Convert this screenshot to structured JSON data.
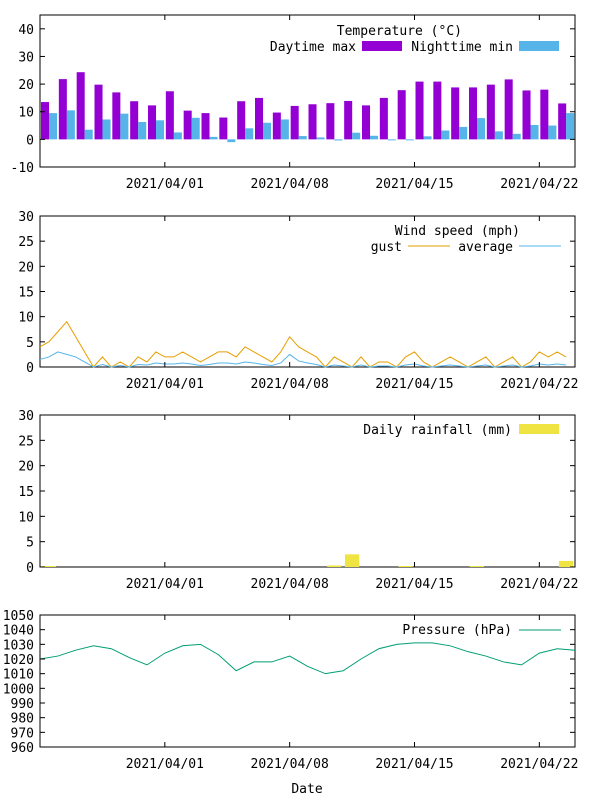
{
  "xaxis": {
    "label": "Date",
    "ticks": [
      {
        "day": 7,
        "label": "2021/04/01"
      },
      {
        "day": 14,
        "label": "2021/04/08"
      },
      {
        "day": 21,
        "label": "2021/04/15"
      },
      {
        "day": 28,
        "label": "2021/04/22"
      }
    ]
  },
  "chart_data": [
    {
      "type": "bar",
      "title": "Temperature (°C)",
      "x": [
        "2021/03/26",
        "2021/03/27",
        "2021/03/28",
        "2021/03/29",
        "2021/03/30",
        "2021/03/31",
        "2021/04/01",
        "2021/04/02",
        "2021/04/03",
        "2021/04/04",
        "2021/04/05",
        "2021/04/06",
        "2021/04/07",
        "2021/04/08",
        "2021/04/09",
        "2021/04/10",
        "2021/04/11",
        "2021/04/12",
        "2021/04/13",
        "2021/04/14",
        "2021/04/15",
        "2021/04/16",
        "2021/04/17",
        "2021/04/18",
        "2021/04/19",
        "2021/04/20",
        "2021/04/21",
        "2021/04/22",
        "2021/04/23",
        "2021/04/24"
      ],
      "series": [
        {
          "name": "Daytime max",
          "color": "#9400d3",
          "values": [
            13.5,
            21.8,
            24.3,
            19.8,
            17.0,
            13.8,
            12.3,
            17.4,
            10.4,
            9.5,
            7.9,
            13.8,
            15.0,
            9.7,
            12.1,
            12.7,
            13.1,
            13.9,
            12.3,
            15.0,
            17.8,
            20.9,
            20.9,
            18.8,
            18.8,
            19.8,
            21.7,
            17.7,
            18.0,
            13.0
          ]
        },
        {
          "name": "Nighttime min",
          "color": "#56b4e9",
          "values": [
            9.5,
            10.5,
            3.5,
            7.2,
            9.3,
            6.3,
            6.9,
            2.5,
            7.8,
            0.9,
            -1.0,
            4.0,
            6.0,
            7.2,
            1.2,
            0.7,
            -0.4,
            2.4,
            1.3,
            0.0,
            0.0,
            1.1,
            3.2,
            4.5,
            7.7,
            2.9,
            2.0,
            5.2,
            5.0,
            9.5
          ]
        }
      ],
      "ylim": [
        -10,
        45
      ],
      "yticks": [
        -10,
        0,
        10,
        20,
        30,
        40
      ],
      "legend": "top-right"
    },
    {
      "type": "line",
      "title": "Wind speed (mph)",
      "series": [
        {
          "name": "gust",
          "color": "#e69f00",
          "x": [
            0,
            0.5,
            1,
            1.5,
            2,
            2.5,
            3,
            3.5,
            4,
            4.5,
            5,
            5.5,
            6,
            6.5,
            7,
            7.5,
            8,
            8.5,
            9,
            9.5,
            10,
            10.5,
            11,
            11.5,
            12,
            12.5,
            13,
            13.5,
            14,
            14.5,
            15,
            15.5,
            16,
            16.5,
            17,
            17.5,
            18,
            18.5,
            19,
            19.5,
            20,
            20.5,
            21,
            21.5,
            22,
            22.5,
            23,
            23.5,
            24,
            24.5,
            25,
            25.5,
            26,
            26.5,
            27,
            27.5,
            28,
            28.5,
            29,
            29.5
          ],
          "y": [
            4,
            5,
            7,
            9,
            6,
            3,
            0,
            2,
            0,
            1,
            0,
            2,
            1,
            3,
            2,
            2,
            3,
            2,
            1,
            2,
            3,
            3,
            2,
            4,
            3,
            2,
            1,
            3,
            6,
            4,
            3,
            2,
            0,
            2,
            1,
            0,
            2,
            0,
            1,
            1,
            0,
            2,
            3,
            1,
            0,
            1,
            2,
            1,
            0,
            1,
            2,
            0,
            1,
            2,
            0,
            1,
            3,
            2,
            3,
            2
          ]
        },
        {
          "name": "average",
          "color": "#56b4e9",
          "x": [
            0,
            0.5,
            1,
            1.5,
            2,
            2.5,
            3,
            3.5,
            4,
            4.5,
            5,
            5.5,
            6,
            6.5,
            7,
            7.5,
            8,
            8.5,
            9,
            9.5,
            10,
            10.5,
            11,
            11.5,
            12,
            12.5,
            13,
            13.5,
            14,
            14.5,
            15,
            15.5,
            16,
            16.5,
            17,
            17.5,
            18,
            18.5,
            19,
            19.5,
            20,
            20.5,
            21,
            21.5,
            22,
            22.5,
            23,
            23.5,
            24,
            24.5,
            25,
            25.5,
            26,
            26.5,
            27,
            27.5,
            28,
            28.5,
            29,
            29.5
          ],
          "y": [
            1.5,
            2,
            3,
            2.5,
            2,
            1,
            0,
            0.5,
            0,
            0.3,
            0,
            0.5,
            0.4,
            0.8,
            0.6,
            0.6,
            0.8,
            0.6,
            0.3,
            0.5,
            0.8,
            0.8,
            0.6,
            1,
            0.8,
            0.5,
            0.3,
            0.8,
            2.5,
            1.2,
            0.8,
            0.5,
            0,
            0.4,
            0.2,
            0,
            0.4,
            0,
            0.2,
            0.2,
            0,
            0.4,
            0.6,
            0.2,
            0,
            0.2,
            0.4,
            0.2,
            0,
            0.2,
            0.4,
            0,
            0.2,
            0.4,
            0,
            0.2,
            0.6,
            0.4,
            0.6,
            0.4
          ]
        }
      ],
      "ylim": [
        0,
        30
      ],
      "yticks": [
        0,
        5,
        10,
        15,
        20,
        25,
        30
      ],
      "legend": "top-right"
    },
    {
      "type": "bar",
      "title": "Daily rainfall (mm)",
      "series": [
        {
          "name": "Daily rainfall (mm)",
          "color": "#f0e442",
          "x": [
            "2021/03/26",
            "2021/04/11",
            "2021/04/12",
            "2021/04/15",
            "2021/04/19",
            "2021/04/24"
          ],
          "values": [
            0.2,
            0.3,
            2.5,
            0.2,
            0.2,
            1.2
          ]
        }
      ],
      "ylim": [
        0,
        30
      ],
      "yticks": [
        0,
        5,
        10,
        15,
        20,
        25,
        30
      ],
      "legend": "top-right"
    },
    {
      "type": "line",
      "title": "Pressure (hPa)",
      "series": [
        {
          "name": "Pressure (hPa)",
          "color": "#009e73",
          "x": [
            0,
            1,
            2,
            3,
            4,
            5,
            6,
            7,
            8,
            9,
            10,
            11,
            12,
            13,
            14,
            15,
            16,
            17,
            18,
            19,
            20,
            21,
            22,
            23,
            24,
            25,
            26,
            27,
            28,
            29,
            30
          ],
          "y": [
            1020,
            1022,
            1026,
            1029,
            1027,
            1021,
            1016,
            1024,
            1029,
            1030,
            1023,
            1012,
            1018,
            1018,
            1022,
            1015,
            1010,
            1012,
            1020,
            1027,
            1030,
            1031,
            1031,
            1029,
            1025,
            1022,
            1018,
            1016,
            1024,
            1027,
            1026
          ]
        }
      ],
      "ylim": [
        960,
        1050
      ],
      "yticks": [
        960,
        970,
        980,
        990,
        1000,
        1010,
        1020,
        1030,
        1040,
        1050
      ],
      "legend": "top-right"
    }
  ]
}
